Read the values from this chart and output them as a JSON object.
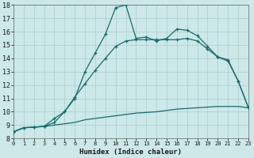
{
  "title": "",
  "xlabel": "Humidex (Indice chaleur)",
  "bg_color": "#cce8e8",
  "grid_color": "#aacccc",
  "line_color": "#1a6b6b",
  "xlim": [
    0,
    23
  ],
  "ylim": [
    8,
    18
  ],
  "xticks": [
    0,
    1,
    2,
    3,
    4,
    5,
    6,
    7,
    8,
    9,
    10,
    11,
    12,
    13,
    14,
    15,
    16,
    17,
    18,
    19,
    20,
    21,
    22,
    23
  ],
  "yticks": [
    8,
    9,
    10,
    11,
    12,
    13,
    14,
    15,
    16,
    17,
    18
  ],
  "line1_x": [
    0,
    1,
    2,
    3,
    4,
    5,
    6,
    7,
    8,
    9,
    10,
    11,
    12,
    13,
    14,
    15,
    16,
    17,
    18,
    19,
    20,
    21,
    22,
    23
  ],
  "line1_y": [
    8.5,
    8.8,
    8.85,
    8.9,
    9.0,
    9.1,
    9.2,
    9.4,
    9.5,
    9.6,
    9.7,
    9.8,
    9.9,
    9.95,
    10.0,
    10.1,
    10.2,
    10.25,
    10.3,
    10.35,
    10.4,
    10.4,
    10.4,
    10.3
  ],
  "line2_x": [
    0,
    1,
    2,
    3,
    4,
    5,
    6,
    7,
    8,
    9,
    10,
    11,
    12,
    13,
    14,
    15,
    16,
    17,
    18,
    19,
    20,
    21,
    22,
    23
  ],
  "line2_y": [
    8.5,
    8.8,
    8.85,
    8.9,
    9.2,
    10.0,
    11.1,
    12.1,
    13.1,
    14.0,
    14.9,
    15.3,
    15.4,
    15.4,
    15.4,
    15.4,
    15.4,
    15.5,
    15.3,
    14.7,
    14.1,
    13.8,
    12.3,
    10.3
  ],
  "line3_x": [
    0,
    1,
    2,
    3,
    4,
    5,
    6,
    7,
    8,
    9,
    10,
    11,
    12,
    13,
    14,
    15,
    16,
    17,
    18,
    19,
    20,
    21,
    22,
    23
  ],
  "line3_y": [
    8.5,
    8.8,
    8.85,
    8.9,
    9.5,
    10.0,
    11.0,
    13.0,
    14.4,
    15.8,
    17.8,
    18.0,
    15.5,
    15.6,
    15.3,
    15.5,
    16.2,
    16.1,
    15.7,
    14.9,
    14.1,
    13.9,
    12.3,
    10.3
  ]
}
